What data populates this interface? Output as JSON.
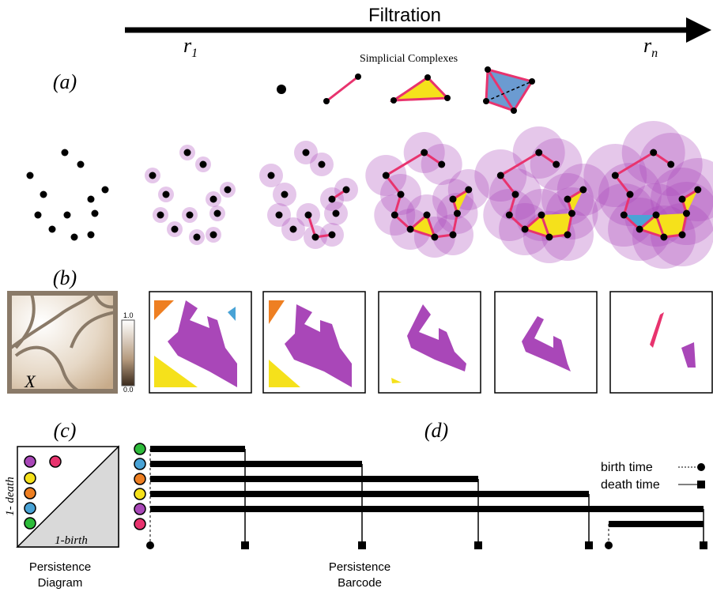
{
  "header": {
    "title": "Filtration",
    "start": {
      "text": "r",
      "sub": "1"
    },
    "end": {
      "text": "r",
      "sub": "n"
    }
  },
  "row_a": {
    "label": "(a)",
    "complexes_title": "Simplicial Complexes"
  },
  "row_b": {
    "label": "(b)",
    "colorbar_max": "1.0",
    "colorbar_min": "0.0",
    "space_label": "X"
  },
  "row_c": {
    "label": "(c)",
    "y_axis": "1- death",
    "x_axis": "1-birth",
    "caption": [
      "Persistence",
      "Diagram"
    ]
  },
  "row_d": {
    "label": "(d)",
    "caption": [
      "Persistence",
      "Barcode"
    ],
    "legend": [
      "birth time",
      "death time"
    ]
  }
}
